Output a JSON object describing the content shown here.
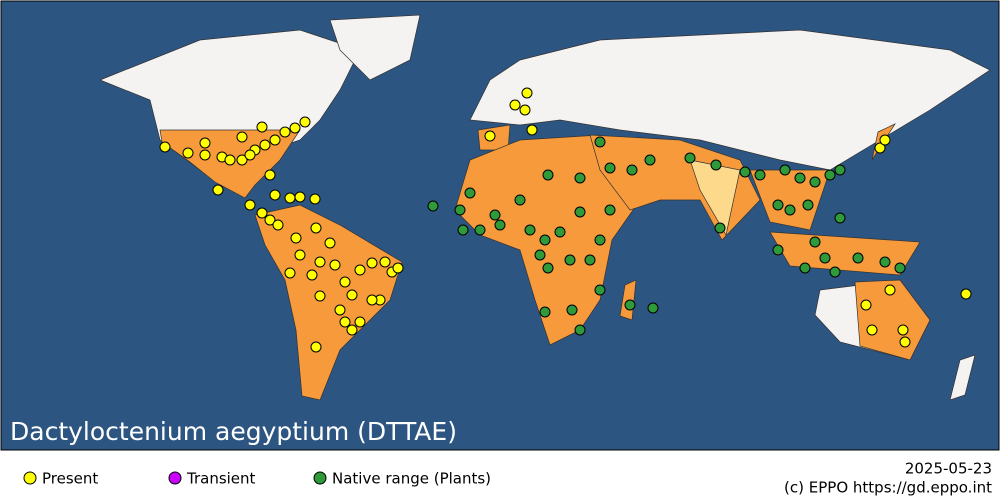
{
  "title": "Dactyloctenium aegyptium (DTTAE)",
  "legend": [
    {
      "label": "Present",
      "color": "#ffff00"
    },
    {
      "label": "Transient",
      "color": "#cc00ff"
    },
    {
      "label": "Native range (Plants)",
      "color": "#2e9a3a"
    }
  ],
  "date": "2025-05-23",
  "credit": "(c) EPPO https://gd.eppo.int"
}
